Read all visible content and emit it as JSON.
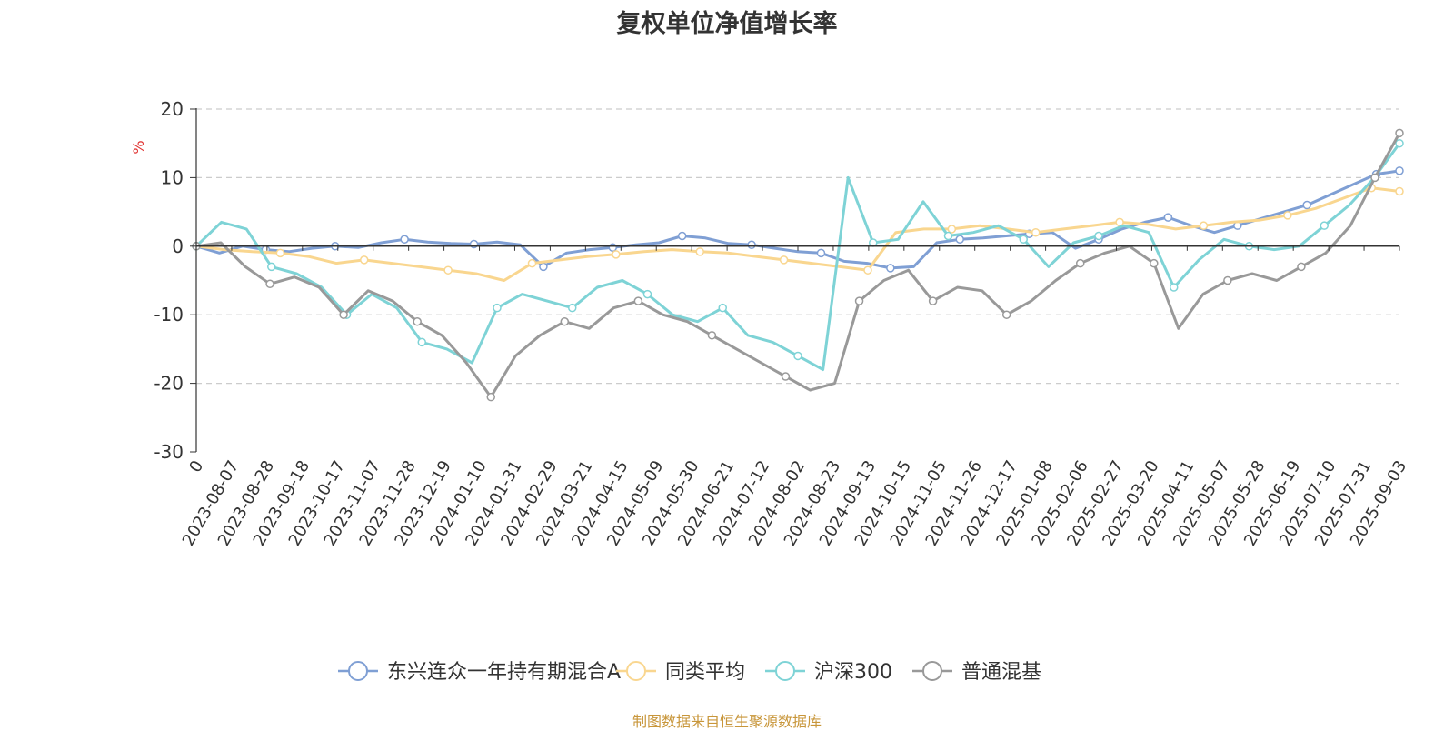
{
  "title": "复权单位净值增长率",
  "source": "制图数据来自恒生聚源数据库",
  "chart_data": {
    "type": "line",
    "title": "复权单位净值增长率",
    "ylabel": "%",
    "ylim": [
      -30,
      20
    ],
    "y_ticks": [
      "20",
      "10",
      "0",
      "-10",
      "-20",
      "-30"
    ],
    "x_tick_labels": [
      "0",
      "2023-08-07",
      "2023-08-28",
      "2023-09-18",
      "2023-10-17",
      "2023-11-07",
      "2023-11-28",
      "2023-12-19",
      "2024-01-10",
      "2024-01-31",
      "2024-02-29",
      "2024-03-21",
      "2024-04-15",
      "2024-05-09",
      "2024-05-30",
      "2024-06-21",
      "2024-07-12",
      "2024-08-02",
      "2024-08-23",
      "2024-09-13",
      "2024-10-15",
      "2024-11-05",
      "2024-11-26",
      "2024-12-17",
      "2025-01-08",
      "2025-02-06",
      "2025-02-27",
      "2025-03-20",
      "2025-04-11",
      "2025-05-07",
      "2025-05-28",
      "2025-06-19",
      "2025-07-10",
      "2025-07-31",
      "2025-09-03"
    ],
    "grid": true,
    "legend_position": "bottom",
    "series": [
      {
        "name": "东兴连众一年持有期混合A",
        "color": "#7f9fd4",
        "values": [
          0,
          -1,
          0,
          -0.5,
          -0.8,
          -0.3,
          0,
          -0.2,
          0.5,
          1.0,
          0.6,
          0.4,
          0.3,
          0.6,
          0.2,
          -3.0,
          -1.0,
          -0.5,
          -0.2,
          0.2,
          0.5,
          1.5,
          1.2,
          0.4,
          0.2,
          -0.3,
          -0.8,
          -1.0,
          -2.2,
          -2.5,
          -3.2,
          -3.0,
          0.5,
          1.0,
          1.2,
          1.5,
          1.8,
          2.0,
          -0.3,
          1.0,
          2.5,
          3.5,
          4.2,
          3.0,
          2.0,
          3.0,
          4.0,
          5.0,
          6.0,
          7.5,
          9.0,
          10.5,
          11.0
        ]
      },
      {
        "name": "同类平均",
        "color": "#f9d68f",
        "values": [
          0,
          -0.5,
          -0.8,
          -1.0,
          -1.5,
          -2.5,
          -2.0,
          -2.5,
          -3.0,
          -3.5,
          -4.0,
          -5.0,
          -2.5,
          -2.0,
          -1.5,
          -1.2,
          -0.8,
          -0.5,
          -0.8,
          -1.0,
          -1.5,
          -2.0,
          -2.5,
          -3.0,
          -3.5,
          2.0,
          2.5,
          2.5,
          3.0,
          2.5,
          2.0,
          2.5,
          3.0,
          3.5,
          3.2,
          2.5,
          3.0,
          3.5,
          3.8,
          4.5,
          5.5,
          7.0,
          8.5,
          8.0
        ]
      },
      {
        "name": "沪深300",
        "color": "#7ed3d6",
        "values": [
          0,
          3.5,
          2.5,
          -3.0,
          -4.0,
          -6.0,
          -10.0,
          -7.0,
          -9.0,
          -14.0,
          -15.0,
          -17.0,
          -9.0,
          -7.0,
          -8.0,
          -9.0,
          -6.0,
          -5.0,
          -7.0,
          -10.0,
          -11.0,
          -9.0,
          -13.0,
          -14.0,
          -16.0,
          -18.0,
          10.0,
          0.5,
          1.0,
          6.5,
          1.5,
          2.0,
          3.0,
          1.0,
          -3.0,
          0.5,
          1.5,
          3.0,
          2.0,
          -6.0,
          -2.0,
          1.0,
          0.0,
          -0.5,
          0.0,
          3.0,
          6.0,
          10.0,
          15.0
        ]
      },
      {
        "name": "普通混基",
        "color": "#999999",
        "values": [
          0,
          0.5,
          -3.0,
          -5.5,
          -4.5,
          -6.0,
          -10.0,
          -6.5,
          -8.0,
          -11.0,
          -13.0,
          -17.0,
          -22.0,
          -16.0,
          -13.0,
          -11.0,
          -12.0,
          -9.0,
          -8.0,
          -10.0,
          -11.0,
          -13.0,
          -15.0,
          -17.0,
          -19.0,
          -21.0,
          -20.0,
          -8.0,
          -5.0,
          -3.5,
          -8.0,
          -6.0,
          -6.5,
          -10.0,
          -8.0,
          -5.0,
          -2.5,
          -1.0,
          0.0,
          -2.5,
          -12.0,
          -7.0,
          -5.0,
          -4.0,
          -5.0,
          -3.0,
          -1.0,
          3.0,
          10.0,
          16.5
        ]
      }
    ]
  }
}
